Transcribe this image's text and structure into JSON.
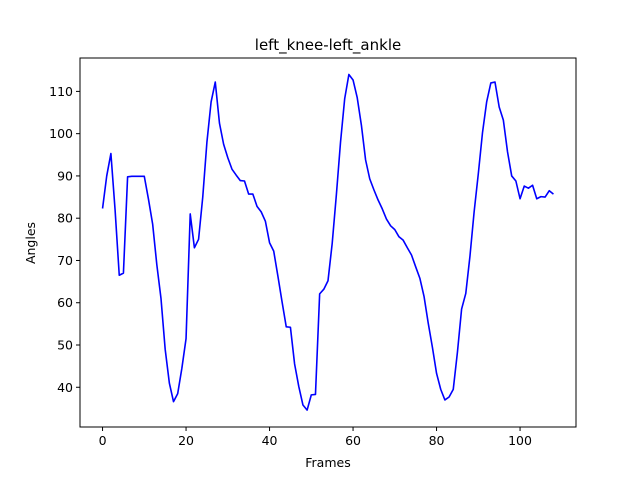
{
  "chart_data": {
    "type": "line",
    "title": "left_knee-left_ankle",
    "xlabel": "Frames",
    "ylabel": "Angles",
    "xlim": [
      -5.4,
      113.4
    ],
    "ylim": [
      30.6,
      117.9
    ],
    "xticks": [
      0,
      20,
      40,
      60,
      80,
      100
    ],
    "yticks": [
      40,
      50,
      60,
      70,
      80,
      90,
      100,
      110
    ],
    "grid": false,
    "series": [
      {
        "color": "#0000ff",
        "x": [
          0,
          1,
          2,
          3,
          4,
          5,
          6,
          7,
          8,
          9,
          10,
          11,
          12,
          13,
          14,
          15,
          16,
          17,
          18,
          19,
          20,
          21,
          22,
          23,
          24,
          25,
          26,
          27,
          28,
          29,
          30,
          31,
          32,
          33,
          34,
          35,
          36,
          37,
          38,
          39,
          40,
          41,
          42,
          43,
          44,
          45,
          46,
          47,
          48,
          49,
          50,
          51,
          52,
          53,
          54,
          55,
          56,
          57,
          58,
          59,
          60,
          61,
          62,
          63,
          64,
          65,
          66,
          67,
          68,
          69,
          70,
          71,
          72,
          73,
          74,
          75,
          76,
          77,
          78,
          79,
          80,
          81,
          82,
          83,
          84,
          85,
          86,
          87,
          88,
          89,
          90,
          91,
          92,
          93,
          94,
          95,
          96,
          97,
          98,
          99,
          100,
          101,
          102,
          103,
          104,
          105,
          106,
          107,
          108
        ],
        "y": [
          82.3,
          90.0,
          95.3,
          82.0,
          66.5,
          67.0,
          89.8,
          89.9,
          89.9,
          89.9,
          89.9,
          84.5,
          78.6,
          69.0,
          61.0,
          49.0,
          41.0,
          36.6,
          38.5,
          44.5,
          51.5,
          81.0,
          73.0,
          75.0,
          85.0,
          98.0,
          107.5,
          112.2,
          102.5,
          97.5,
          94.3,
          91.6,
          90.2,
          88.9,
          88.8,
          85.7,
          85.7,
          82.8,
          81.5,
          79.3,
          74.2,
          72.2,
          66.3,
          60.2,
          54.3,
          54.2,
          45.5,
          40.2,
          35.8,
          34.6,
          38.2,
          38.3,
          62.1,
          63.2,
          65.2,
          74.0,
          85.5,
          98.0,
          108.3,
          114.0,
          112.7,
          108.5,
          102.0,
          93.8,
          89.3,
          86.7,
          84.3,
          82.2,
          79.8,
          78.2,
          77.3,
          75.6,
          74.8,
          73.0,
          71.3,
          68.5,
          65.8,
          61.5,
          55.2,
          49.5,
          43.3,
          39.5,
          37.0,
          37.7,
          39.5,
          48.3,
          58.5,
          62.2,
          71.0,
          81.5,
          90.5,
          100.2,
          107.5,
          112.0,
          112.2,
          106.3,
          103.2,
          95.7,
          90.0,
          88.8,
          84.6,
          87.6,
          87.1,
          87.8,
          84.6,
          85.1,
          85.0,
          86.5,
          85.7
        ]
      }
    ]
  }
}
